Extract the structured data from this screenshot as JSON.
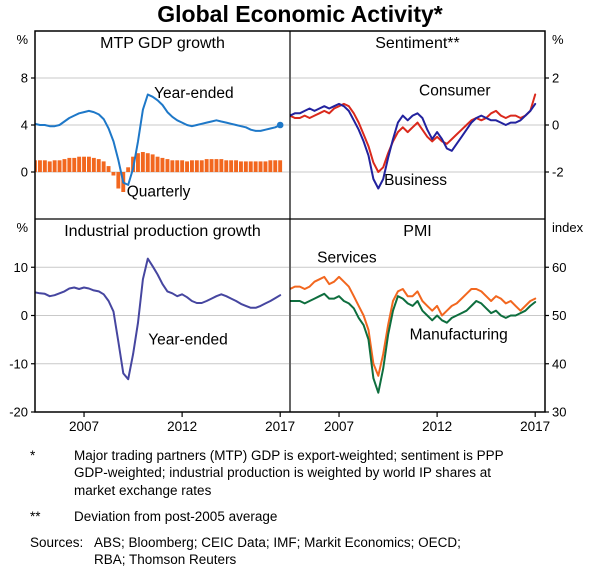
{
  "title": "Global Economic Activity*",
  "x_axis": {
    "xlim": [
      2004.5,
      2017.5
    ],
    "ticks": [
      2007,
      2012,
      2017
    ]
  },
  "colors": {
    "blue": "#1E78C8",
    "orange": "#F2671F",
    "red": "#DA291C",
    "navy": "#22229E",
    "purple": "#4646A0",
    "green": "#0E6E3E",
    "gridline": "#C9C9C9",
    "axis": "#000000"
  },
  "chart_data": [
    {
      "id": "mtp-gdp-growth",
      "type": "line+bar",
      "title": "MTP GDP growth",
      "position": "top-left",
      "unit": "%",
      "unit_side": "left",
      "ylim": [
        -4,
        12
      ],
      "yticks": [
        0,
        4,
        8
      ],
      "series": [
        {
          "name": "Quarterly",
          "type": "bar",
          "color": "#F2671F",
          "label_at": [
            2010.8,
            -2.1
          ],
          "x_start": 2004.5,
          "x_step": 0.25,
          "values": [
            1.0,
            1.0,
            1.0,
            0.9,
            1.0,
            1.0,
            1.1,
            1.2,
            1.2,
            1.3,
            1.3,
            1.3,
            1.2,
            1.1,
            0.9,
            0.5,
            -0.3,
            -1.4,
            -1.7,
            0.4,
            1.3,
            1.6,
            1.7,
            1.6,
            1.5,
            1.3,
            1.2,
            1.1,
            1.0,
            1.0,
            1.0,
            0.9,
            1.0,
            1.0,
            1.0,
            1.1,
            1.1,
            1.1,
            1.1,
            1.0,
            1.0,
            1.0,
            0.9,
            0.9,
            0.9,
            0.9,
            0.9,
            0.9,
            1.0,
            1.0,
            1.0
          ]
        },
        {
          "name": "Year-ended",
          "type": "line",
          "color": "#1E78C8",
          "end_dot": true,
          "label_at": [
            2012.6,
            6.3
          ],
          "x_start": 2004.5,
          "x_step": 0.25,
          "values": [
            4.1,
            4.0,
            4.0,
            3.9,
            3.9,
            4.0,
            4.3,
            4.6,
            4.8,
            5.0,
            5.1,
            5.2,
            5.1,
            4.9,
            4.5,
            3.7,
            2.6,
            1.0,
            -0.9,
            -1.1,
            0.3,
            2.6,
            5.3,
            6.6,
            6.4,
            6.1,
            5.7,
            5.1,
            4.7,
            4.4,
            4.2,
            4.0,
            3.9,
            4.0,
            4.1,
            4.2,
            4.3,
            4.4,
            4.3,
            4.2,
            4.1,
            4.0,
            3.9,
            3.8,
            3.6,
            3.5,
            3.5,
            3.6,
            3.7,
            3.8,
            4.0
          ]
        }
      ]
    },
    {
      "id": "sentiment",
      "type": "line",
      "title": "Sentiment**",
      "position": "top-right",
      "unit": "%",
      "unit_side": "right",
      "ylim": [
        -4,
        4
      ],
      "yticks": [
        -2,
        0,
        2
      ],
      "series": [
        {
          "name": "Consumer",
          "type": "line",
          "color": "#DA291C",
          "label_at": [
            2012.9,
            1.25
          ],
          "x_start": 2004.5,
          "x_step": 0.25,
          "values": [
            0.4,
            0.3,
            0.3,
            0.4,
            0.3,
            0.4,
            0.5,
            0.6,
            0.5,
            0.7,
            0.8,
            0.9,
            0.8,
            0.5,
            0.1,
            -0.4,
            -0.9,
            -1.6,
            -2.0,
            -1.8,
            -1.2,
            -0.7,
            -0.3,
            -0.1,
            -0.3,
            -0.1,
            0.1,
            -0.2,
            -0.5,
            -0.7,
            -0.5,
            -0.7,
            -0.8,
            -0.6,
            -0.4,
            -0.2,
            0.0,
            0.2,
            0.3,
            0.2,
            0.3,
            0.5,
            0.6,
            0.4,
            0.3,
            0.4,
            0.4,
            0.3,
            0.4,
            0.6,
            1.3
          ]
        },
        {
          "name": "Business",
          "type": "line",
          "color": "#22229E",
          "label_at": [
            2010.9,
            -2.55
          ],
          "x_start": 2004.5,
          "x_step": 0.25,
          "values": [
            0.4,
            0.5,
            0.5,
            0.6,
            0.7,
            0.6,
            0.7,
            0.8,
            0.7,
            0.8,
            0.9,
            0.8,
            0.6,
            0.2,
            -0.2,
            -0.7,
            -1.3,
            -2.3,
            -2.7,
            -2.3,
            -1.4,
            -0.6,
            0.1,
            0.4,
            0.2,
            0.4,
            0.5,
            0.3,
            -0.2,
            -0.6,
            -0.3,
            -0.6,
            -1.0,
            -1.1,
            -0.8,
            -0.5,
            -0.2,
            0.1,
            0.3,
            0.4,
            0.3,
            0.2,
            0.2,
            0.1,
            0.0,
            0.1,
            0.1,
            0.2,
            0.4,
            0.6,
            0.9
          ]
        }
      ]
    },
    {
      "id": "industrial-production-growth",
      "type": "line",
      "title": "Industrial production growth",
      "position": "bottom-left",
      "unit": "%",
      "unit_side": "left",
      "ylim": [
        -20,
        20
      ],
      "yticks": [
        -20,
        -10,
        0,
        10
      ],
      "series": [
        {
          "name": "Year-ended",
          "type": "line",
          "color": "#4646A0",
          "label_at": [
            2012.3,
            -6.0
          ],
          "x_start": 2004.5,
          "x_step": 0.25,
          "values": [
            4.8,
            4.6,
            4.5,
            4.0,
            4.2,
            4.6,
            5.0,
            5.6,
            5.8,
            5.5,
            5.8,
            5.6,
            5.2,
            5.0,
            4.4,
            3.0,
            0.8,
            -5.5,
            -12.0,
            -13.2,
            -8.0,
            -1.5,
            7.5,
            11.8,
            10.2,
            8.5,
            6.5,
            5.0,
            4.6,
            4.0,
            4.4,
            3.8,
            3.0,
            2.6,
            2.6,
            3.0,
            3.5,
            4.0,
            4.4,
            4.0,
            3.5,
            3.0,
            2.4,
            2.0,
            1.6,
            1.6,
            2.0,
            2.5,
            3.0,
            3.6,
            4.2
          ]
        }
      ]
    },
    {
      "id": "pmi",
      "type": "line",
      "title": "PMI",
      "position": "bottom-right",
      "unit": "index",
      "unit_side": "right",
      "ylim": [
        30,
        70
      ],
      "yticks": [
        30,
        40,
        50,
        60
      ],
      "series": [
        {
          "name": "Services",
          "type": "line",
          "color": "#F2671F",
          "label_at": [
            2007.4,
            61.0
          ],
          "x_start": 2004.5,
          "x_step": 0.25,
          "values": [
            55.5,
            56,
            56,
            55.5,
            56,
            57,
            57.5,
            58,
            56.5,
            57,
            58,
            57,
            56,
            54,
            52,
            50,
            47,
            40,
            37.5,
            42,
            48,
            53,
            55,
            55.5,
            54,
            54,
            55,
            53,
            52,
            51,
            52,
            50,
            51,
            52,
            52.5,
            53.5,
            54.5,
            55.5,
            55.5,
            55,
            54,
            53,
            54,
            53.5,
            52.5,
            53,
            52,
            51,
            52,
            53,
            53.5
          ]
        },
        {
          "name": "Manufacturing",
          "type": "line",
          "color": "#0E6E3E",
          "label_at": [
            2013.1,
            45.0
          ],
          "x_start": 2004.5,
          "x_step": 0.25,
          "values": [
            53,
            53,
            53,
            52.5,
            53,
            53.5,
            54,
            54.5,
            53.5,
            53.5,
            54,
            53,
            52.5,
            51.5,
            49.5,
            48,
            45,
            37,
            34,
            39,
            46,
            51,
            54,
            53.5,
            52.5,
            52,
            53,
            51,
            50,
            49,
            50,
            49,
            48.5,
            49.5,
            50,
            50.5,
            51,
            52,
            53,
            52.5,
            51.5,
            50.5,
            51,
            50,
            49.5,
            50,
            50,
            50.5,
            51,
            52,
            52.8
          ]
        }
      ]
    }
  ],
  "footnotes": [
    {
      "marker": "*",
      "text": "Major trading partners (MTP) GDP is export-weighted; sentiment is PPP GDP-weighted; industrial production is weighted by world IP shares at market exchange rates"
    },
    {
      "marker": "**",
      "text": "Deviation from post-2005 average"
    }
  ],
  "sources": {
    "label": "Sources:",
    "text": "ABS; Bloomberg; CEIC Data; IMF; Markit Economics; OECD; RBA; Thomson Reuters"
  }
}
